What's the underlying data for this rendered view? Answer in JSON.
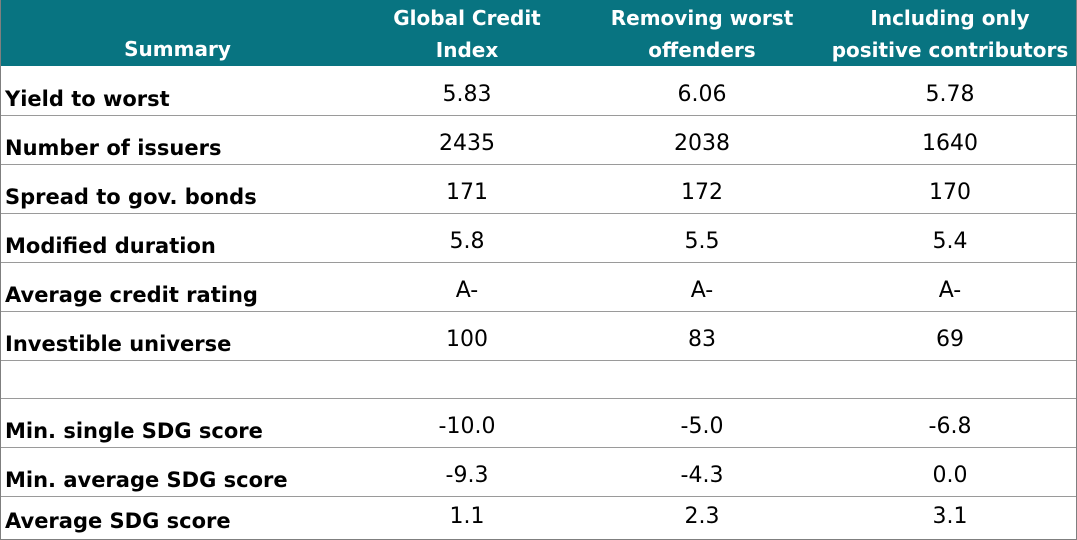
{
  "header": {
    "summary": "Summary",
    "col1_line1": "Global Credit",
    "col1_line2": "Index",
    "col2_line1": "Removing worst",
    "col2_line2": "offenders",
    "col3_line1": "Including only",
    "col3_line2": "positive contributors"
  },
  "colors": {
    "header_bg": "#087481",
    "header_text": "#ffffff",
    "row_divider": "#9a9a9a"
  },
  "rows": [
    {
      "label": "Yield to worst",
      "v1": "5.83",
      "v2": "6.06",
      "v3": "5.78"
    },
    {
      "label": "Number of issuers",
      "v1": "2435",
      "v2": "2038",
      "v3": "1640"
    },
    {
      "label": "Spread to gov. bonds",
      "v1": "171",
      "v2": "172",
      "v3": "170"
    },
    {
      "label": "Modified duration",
      "v1": "5.8",
      "v2": "5.5",
      "v3": "5.4"
    },
    {
      "label": "Average credit rating",
      "v1": "A-",
      "v2": "A-",
      "v3": "A-"
    },
    {
      "label": "Investible universe",
      "v1": "100",
      "v2": "83",
      "v3": "69"
    },
    {
      "label": "Min. single SDG score",
      "v1": "-10.0",
      "v2": "-5.0",
      "v3": "-6.8"
    },
    {
      "label": "Min. average SDG score",
      "v1": "-9.3",
      "v2": "-4.3",
      "v3": "0.0"
    },
    {
      "label": "Average SDG score",
      "v1": "1.1",
      "v2": "2.3",
      "v3": "3.1"
    }
  ]
}
